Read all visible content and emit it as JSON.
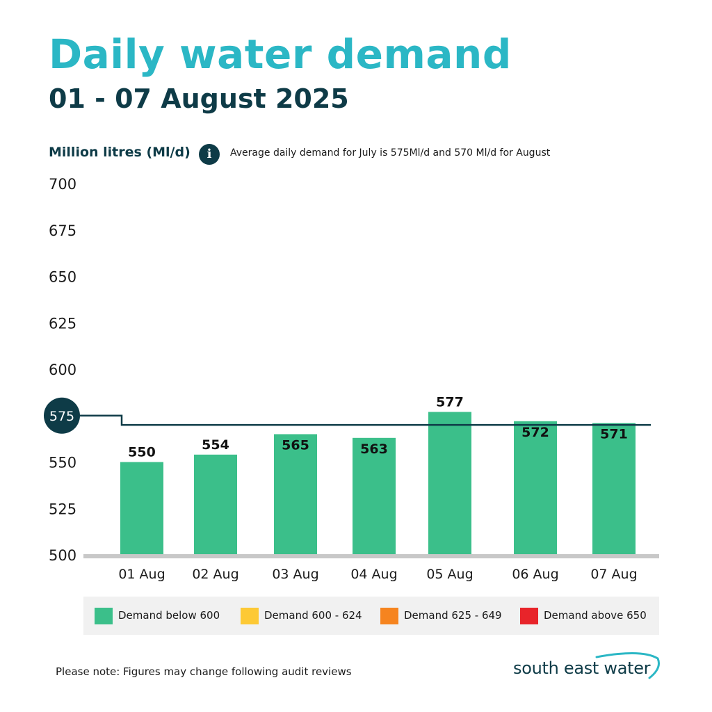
{
  "header": {
    "title": "Daily water demand",
    "subtitle": "01 - 07 August 2025"
  },
  "axis_unit_label": "Million litres (Ml/d)",
  "info": {
    "icon": "info-icon",
    "note": "Average daily demand for July is 575Ml/d and 570 Ml/d for August"
  },
  "chart_data": {
    "type": "bar",
    "title": "Daily water demand",
    "ylabel": "Million litres (Ml/d)",
    "xlabel": "",
    "ylim": [
      500,
      700
    ],
    "yticks": [
      500,
      525,
      550,
      575,
      600,
      625,
      650,
      675,
      700
    ],
    "categories": [
      "01 Aug",
      "02 Aug",
      "03 Aug",
      "04 Aug",
      "05 Aug",
      "06 Aug",
      "07  Aug"
    ],
    "values": [
      550,
      554,
      565,
      563,
      577,
      572,
      571
    ],
    "bar_color": "#3bbf8a",
    "reference_line": {
      "description": "Average daily demand",
      "segments": [
        {
          "label": "July average",
          "value": 575,
          "from_category": 0,
          "span": "partial"
        },
        {
          "label": "August average",
          "value": 570,
          "span": "rest"
        }
      ],
      "marker_value": 575,
      "color": "#0e3b47"
    },
    "legend": [
      {
        "label": "Demand below 600",
        "color": "#3bbf8a"
      },
      {
        "label": "Demand 600 - 624",
        "color": "#fdc935"
      },
      {
        "label": "Demand 625 - 649",
        "color": "#f6841f"
      },
      {
        "label": "Demand above 650",
        "color": "#e8242a"
      }
    ]
  },
  "footer": {
    "note": "Please note: Figures may change following audit reviews",
    "brand": "south east water"
  },
  "colors": {
    "title": "#2bb7c5",
    "dark": "#0e3b47",
    "baseline": "#c8c8c8"
  }
}
